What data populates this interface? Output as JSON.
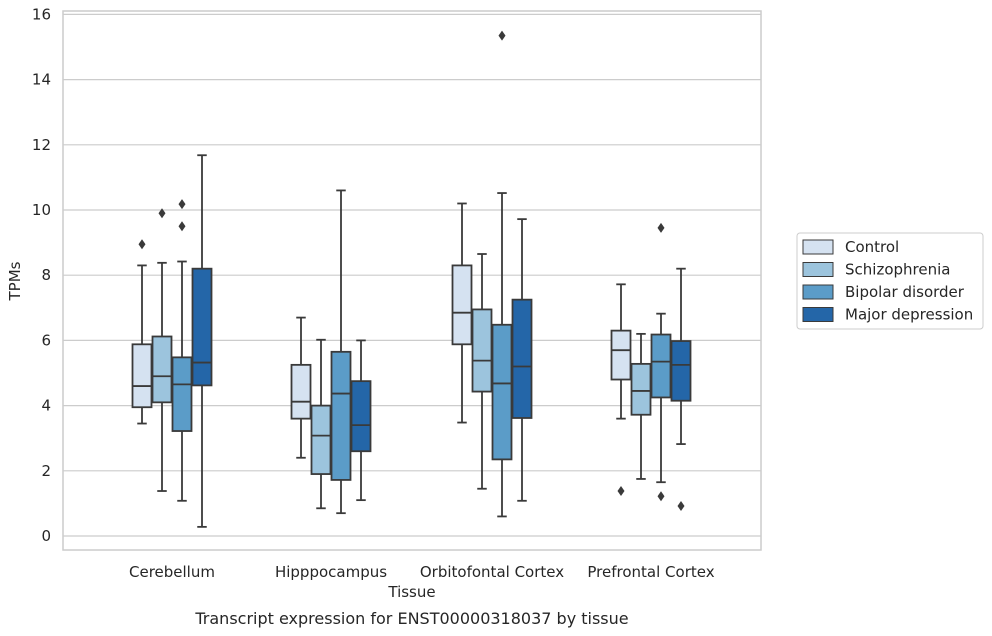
{
  "chart_data": {
    "type": "box",
    "caption": "Transcript expression for ENST00000318037 by tissue",
    "xlabel": "Tissue",
    "ylabel": "TPMs",
    "ylim": [
      -0.4,
      16.2
    ],
    "yticks": [
      0,
      2,
      4,
      6,
      8,
      10,
      12,
      14,
      16
    ],
    "grid": true,
    "legend_position": "right",
    "categories": [
      "Cerebellum",
      "Hipppocampus",
      "Orbitofontal Cortex",
      "Prefrontal Cortex"
    ],
    "series": [
      {
        "name": "Control",
        "color": "#d5e2f1",
        "boxes": [
          {
            "whislo": 3.45,
            "q1": 3.95,
            "med": 4.6,
            "q3": 5.88,
            "whishi": 8.3,
            "fliers": [
              8.95
            ]
          },
          {
            "whislo": 2.4,
            "q1": 3.6,
            "med": 4.12,
            "q3": 5.25,
            "whishi": 6.7,
            "fliers": []
          },
          {
            "whislo": 3.48,
            "q1": 5.88,
            "med": 6.85,
            "q3": 8.3,
            "whishi": 10.2,
            "fliers": []
          },
          {
            "whislo": 3.6,
            "q1": 4.8,
            "med": 5.7,
            "q3": 6.3,
            "whishi": 7.72,
            "fliers": [
              1.38
            ]
          }
        ]
      },
      {
        "name": "Schizophrenia",
        "color": "#9cc4dd",
        "boxes": [
          {
            "whislo": 1.38,
            "q1": 4.1,
            "med": 4.9,
            "q3": 6.12,
            "whishi": 8.38,
            "fliers": [
              9.9
            ]
          },
          {
            "whislo": 0.85,
            "q1": 1.9,
            "med": 3.08,
            "q3": 4.0,
            "whishi": 6.02,
            "fliers": []
          },
          {
            "whislo": 1.45,
            "q1": 4.43,
            "med": 5.38,
            "q3": 6.95,
            "whishi": 8.65,
            "fliers": []
          },
          {
            "whislo": 1.75,
            "q1": 3.72,
            "med": 4.45,
            "q3": 5.28,
            "whishi": 6.2,
            "fliers": []
          }
        ]
      },
      {
        "name": "Bipolar disorder",
        "color": "#5b9cc8",
        "boxes": [
          {
            "whislo": 1.08,
            "q1": 3.22,
            "med": 4.65,
            "q3": 5.48,
            "whishi": 8.42,
            "fliers": [
              10.18,
              9.5
            ]
          },
          {
            "whislo": 0.7,
            "q1": 1.72,
            "med": 4.37,
            "q3": 5.65,
            "whishi": 10.6,
            "fliers": []
          },
          {
            "whislo": 0.6,
            "q1": 2.35,
            "med": 4.68,
            "q3": 6.48,
            "whishi": 10.52,
            "fliers": [
              15.35
            ]
          },
          {
            "whislo": 1.65,
            "q1": 4.25,
            "med": 5.35,
            "q3": 6.18,
            "whishi": 6.82,
            "fliers": [
              1.22,
              9.45
            ]
          }
        ]
      },
      {
        "name": "Major depression",
        "color": "#2466a8",
        "boxes": [
          {
            "whislo": 0.28,
            "q1": 4.62,
            "med": 5.32,
            "q3": 8.2,
            "whishi": 11.68,
            "fliers": []
          },
          {
            "whislo": 1.1,
            "q1": 2.6,
            "med": 3.4,
            "q3": 4.75,
            "whishi": 6.0,
            "fliers": []
          },
          {
            "whislo": 1.08,
            "q1": 3.62,
            "med": 5.2,
            "q3": 7.25,
            "whishi": 9.72,
            "fliers": []
          },
          {
            "whislo": 2.82,
            "q1": 4.15,
            "med": 5.25,
            "q3": 5.98,
            "whishi": 8.2,
            "fliers": [
              0.92
            ]
          }
        ]
      }
    ]
  }
}
